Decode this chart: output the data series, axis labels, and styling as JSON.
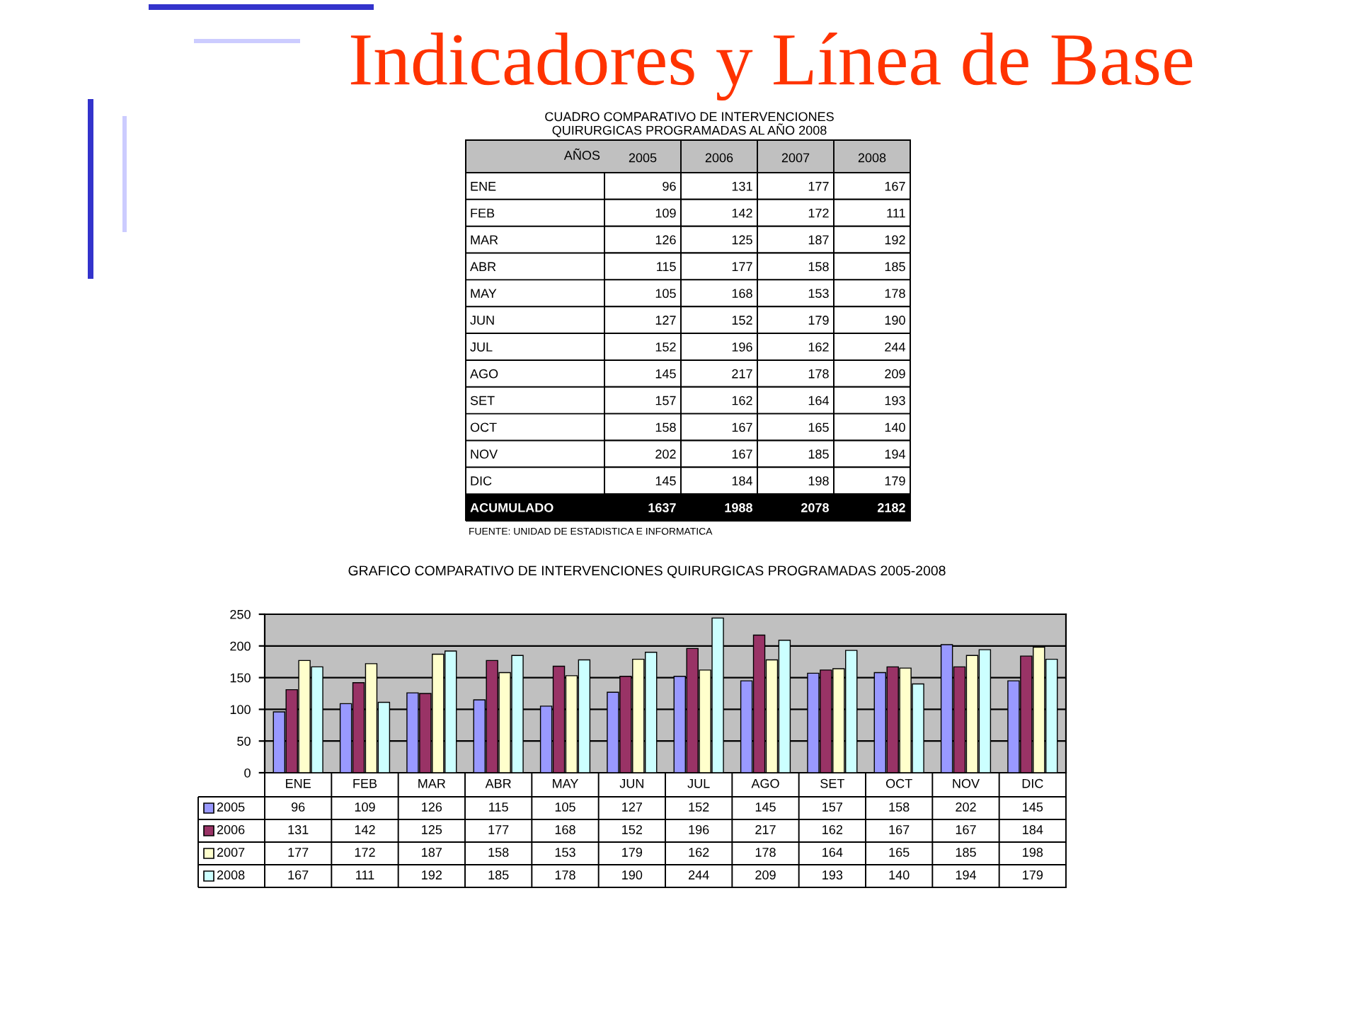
{
  "chart_data": [
    {
      "type": "heatmap",
      "title": "Indicadores y Línea de Base",
      "subtitle": "CUADRO COMPARATIVO DE INTERVENCIONES\nQUIRURGICAS PROGRAMADAS AL AÑO 2008",
      "ylabel": "AÑOS",
      "categories": [
        "2005",
        "2006",
        "2007",
        "2008"
      ],
      "y_categories": [
        "ENE",
        "FEB",
        "MAR",
        "ABR",
        "MAY",
        "JUN",
        "JUL",
        "AGO",
        "SET",
        "OCT",
        "NOV",
        "DIC",
        "ACUMULADO"
      ],
      "cells": [
        [
          96,
          131,
          177,
          167
        ],
        [
          109,
          142,
          172,
          111
        ],
        [
          126,
          125,
          187,
          192
        ],
        [
          115,
          177,
          158,
          185
        ],
        [
          105,
          168,
          153,
          178
        ],
        [
          127,
          152,
          179,
          190
        ],
        [
          152,
          196,
          162,
          244
        ],
        [
          145,
          217,
          178,
          209
        ],
        [
          157,
          162,
          164,
          193
        ],
        [
          158,
          167,
          165,
          140
        ],
        [
          202,
          167,
          185,
          194
        ],
        [
          145,
          184,
          198,
          179
        ],
        [
          1637,
          1988,
          2078,
          2182
        ]
      ],
      "data_labels": true,
      "annotations": [
        "FUENTE: UNIDAD DE ESTADISTICA E INFORMATICA"
      ]
    },
    {
      "type": "bar",
      "title": "GRAFICO COMPARATIVO DE INTERVENCIONES QUIRURGICAS PROGRAMADAS 2005-2008",
      "categories": [
        "ENE",
        "FEB",
        "MAR",
        "ABR",
        "MAY",
        "JUN",
        "JUL",
        "AGO",
        "SET",
        "OCT",
        "NOV",
        "DIC"
      ],
      "series": [
        {
          "name": "2005",
          "color": "#9999ff",
          "values": [
            96,
            109,
            126,
            115,
            105,
            127,
            152,
            145,
            157,
            158,
            202,
            145
          ]
        },
        {
          "name": "2006",
          "color": "#993366",
          "values": [
            131,
            142,
            125,
            177,
            168,
            152,
            196,
            217,
            162,
            167,
            167,
            184
          ]
        },
        {
          "name": "2007",
          "color": "#ffffcc",
          "values": [
            177,
            172,
            187,
            158,
            153,
            179,
            162,
            178,
            164,
            165,
            185,
            198
          ]
        },
        {
          "name": "2008",
          "color": "#ccffff",
          "values": [
            167,
            111,
            192,
            185,
            178,
            190,
            244,
            209,
            193,
            140,
            194,
            179
          ]
        }
      ],
      "ylim": [
        0,
        250
      ],
      "yticks": [
        0,
        50,
        100,
        150,
        200,
        250
      ],
      "grid": "y",
      "legend": "bottom",
      "data_labels": true
    }
  ]
}
